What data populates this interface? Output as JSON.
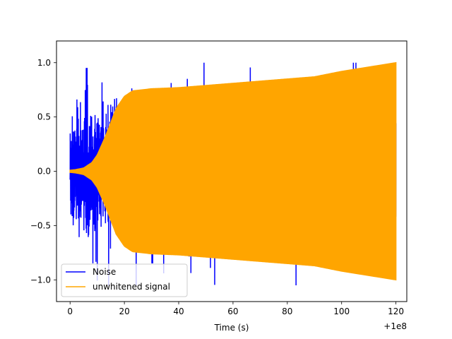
{
  "chart_data": {
    "type": "line",
    "title": "",
    "xlabel": "Time (s)",
    "ylabel": "",
    "x_offset_label": "+1e8",
    "xlim": [
      -5,
      124
    ],
    "ylim": [
      -1.2,
      1.2
    ],
    "x_ticks": [
      0,
      20,
      40,
      60,
      80,
      100,
      120
    ],
    "x_tick_labels": [
      "0",
      "20",
      "40",
      "60",
      "80",
      "100",
      "120"
    ],
    "y_ticks": [
      -1.0,
      -0.5,
      0.0,
      0.5,
      1.0
    ],
    "y_tick_labels": [
      "−1.0",
      "−0.5",
      "0.0",
      "0.5",
      "1.0"
    ],
    "grid": false,
    "legend_position": "lower-left",
    "series": [
      {
        "name": "Noise",
        "color": "#0000ff",
        "kind": "noise",
        "x_range": [
          0,
          120
        ],
        "typical_amplitude": 0.45,
        "peak_values": [
          1.0,
          -1.05,
          0.95,
          -0.95
        ]
      },
      {
        "name": "unwhitened signal",
        "color": "#ffa500",
        "kind": "chirp",
        "x": [
          0,
          2,
          5,
          8,
          10,
          13,
          15,
          17,
          20,
          23,
          30,
          40,
          60,
          80,
          90,
          100,
          110,
          120
        ],
        "envelope": [
          0.01,
          0.015,
          0.03,
          0.08,
          0.15,
          0.32,
          0.45,
          0.58,
          0.69,
          0.74,
          0.76,
          0.77,
          0.81,
          0.85,
          0.87,
          0.92,
          0.96,
          1.0
        ]
      }
    ]
  }
}
